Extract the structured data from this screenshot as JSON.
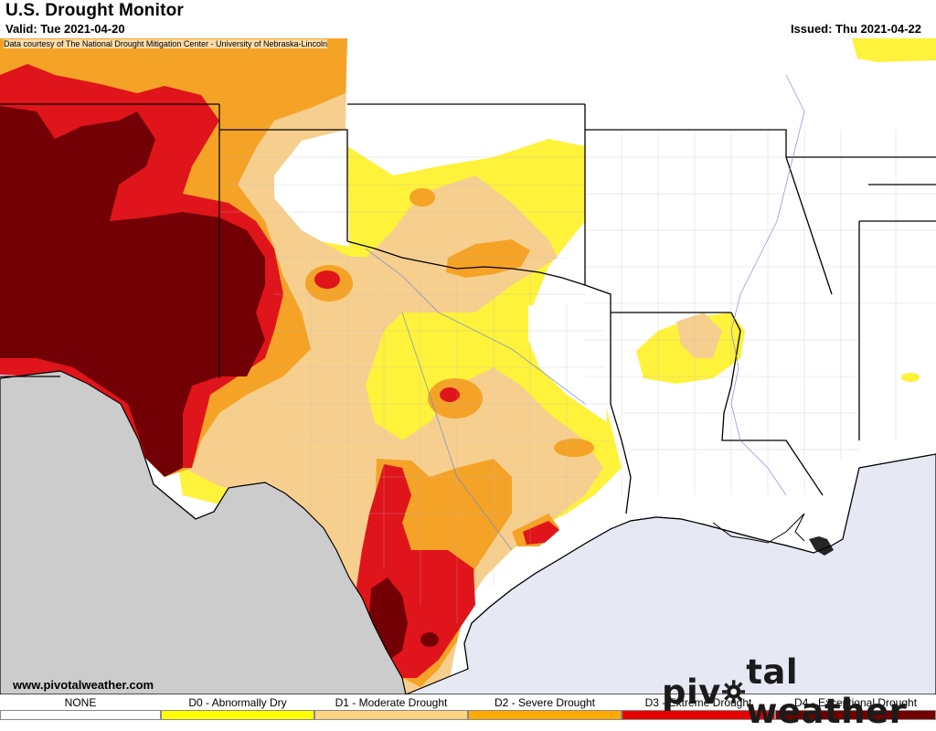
{
  "header": {
    "title": "U.S. Drought Monitor",
    "valid": "Valid: Tue 2021-04-20",
    "issued": "Issued: Thu 2021-04-22",
    "credit": "Data courtesy of The National Drought Mitigation Center - University of Nebraska-Lincoln"
  },
  "footer": {
    "url": "www.pivotalweather.com",
    "logo_left": "piv",
    "logo_right": "tal weather"
  },
  "legend": [
    {
      "label": "NONE",
      "color": "#ffffff"
    },
    {
      "label": "D0 - Abnormally Dry",
      "color": "#ffff00"
    },
    {
      "label": "D1 - Moderate Drought",
      "color": "#fcd37f"
    },
    {
      "label": "D2 - Severe Drought",
      "color": "#ffaa00"
    },
    {
      "label": "D3 - Extreme Drought",
      "color": "#e60000"
    },
    {
      "label": "D4 - Exceptional Drought",
      "color": "#730000"
    }
  ],
  "colors": {
    "ocean": "#e6e8f3",
    "mexico": "#cccccc",
    "river": "#6b86d8",
    "none": "#ffffff",
    "d0": "#fff23a",
    "d1": "#f6cf8e",
    "d2": "#f5a327",
    "d3": "#e0141b",
    "d4": "#730005"
  }
}
